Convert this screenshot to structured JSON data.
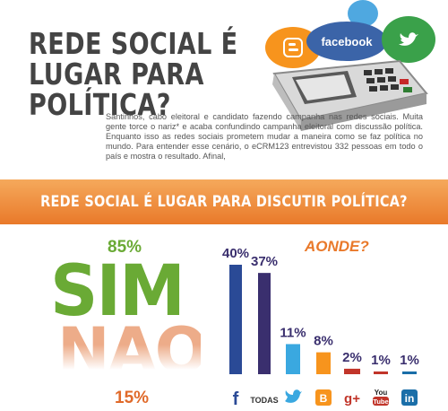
{
  "header": {
    "title_line1": "REDE SOCIAL É",
    "title_line2": "LUGAR PARA POLÍTICA?",
    "bubbles": {
      "facebook": "facebook"
    }
  },
  "intro": {
    "text": "Santinhos, cabo eleitoral e candidato fazendo campanha nas redes sociais. Muita gente torce o nariz* e acaba confundindo campanha eleitoral com discussão política. Enquanto isso as redes sociais prometem mudar a maneira como se faz política no mundo. Para entender esse cenário, o eCRM123 entrevistou 332 pessoas em todo o país e mostra o resultado. Afinal,"
  },
  "banner": {
    "text": "REDE SOCIAL É LUGAR PARA DISCUTIR POLÍTICA?"
  },
  "colors": {
    "accent": "#e9792a",
    "sim": "#6aaa35",
    "nao": "#e06a2a"
  },
  "chart_data": [
    {
      "type": "text-figure",
      "categories": [
        "SIM",
        "NAO"
      ],
      "values": [
        "85%",
        "15%"
      ]
    },
    {
      "type": "bar",
      "title": "AONDE?",
      "categories": [
        "facebook",
        "TODAS",
        "twitter",
        "blogger",
        "google+",
        "youtube",
        "linkedin"
      ],
      "values": [
        40,
        37,
        11,
        8,
        2,
        1,
        1
      ],
      "value_labels": [
        "40%",
        "37%",
        "11%",
        "8%",
        "2%",
        "1%",
        "1%"
      ],
      "icon_texts": [
        "f",
        "TODAS",
        "",
        "B",
        "g+",
        "You Tube",
        "in"
      ],
      "colors": [
        "#2a4a96",
        "#3a2f6e",
        "#3aa8e0",
        "#f7941d",
        "#c1352a",
        "#c1352a",
        "#1a6ea8"
      ],
      "ylim": [
        0,
        40
      ]
    }
  ]
}
